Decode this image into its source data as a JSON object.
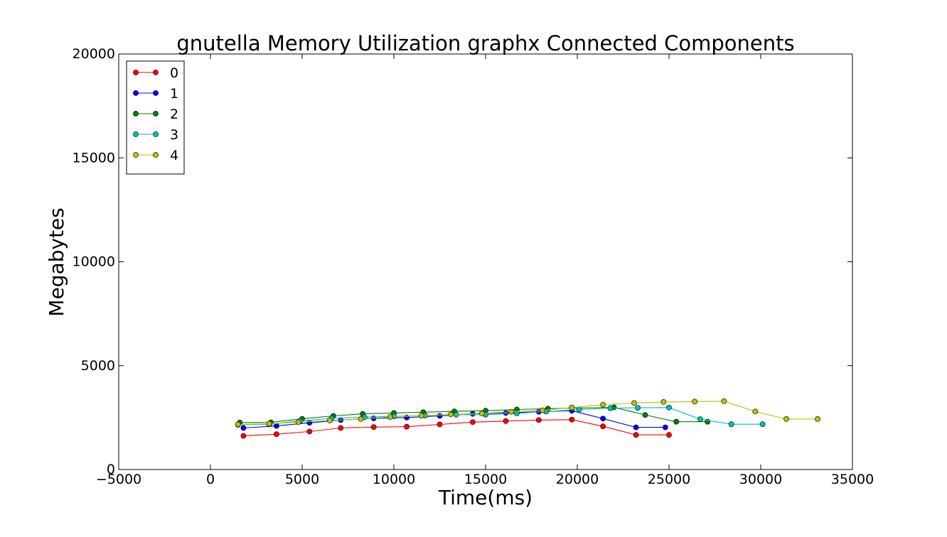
{
  "chart_data": {
    "type": "line",
    "title": "gnutella Memory Utilization graphx Connected Components",
    "xlabel": "Time(ms)",
    "ylabel": "Megabytes",
    "xlim": [
      -5000,
      35000
    ],
    "ylim": [
      0,
      20000
    ],
    "xticks": [
      "−5000",
      "0",
      "5000",
      "10000",
      "15000",
      "20000",
      "25000",
      "30000",
      "35000"
    ],
    "yticks": [
      "0",
      "5000",
      "10000",
      "15000",
      "20000"
    ],
    "legend_position": "top-left",
    "grid": false,
    "series": [
      {
        "name": "0",
        "color": "#ff0000",
        "x": [
          1800,
          3600,
          5400,
          7100,
          8900,
          10700,
          12500,
          14300,
          16100,
          17900,
          19700,
          21400,
          23200,
          25000
        ],
        "y": [
          1620,
          1700,
          1830,
          2000,
          2040,
          2060,
          2170,
          2280,
          2330,
          2380,
          2400,
          2080,
          1670,
          1670
        ]
      },
      {
        "name": "1",
        "color": "#0000ff",
        "x": [
          1800,
          3600,
          5400,
          7100,
          8900,
          10700,
          12500,
          14300,
          16100,
          17900,
          19700,
          21400,
          23200,
          24800
        ],
        "y": [
          2000,
          2100,
          2250,
          2380,
          2460,
          2500,
          2580,
          2680,
          2720,
          2780,
          2830,
          2450,
          2030,
          2030
        ]
      },
      {
        "name": "2",
        "color": "#008000",
        "x": [
          1600,
          3300,
          5000,
          6700,
          8300,
          10000,
          11600,
          13300,
          15000,
          16700,
          18400,
          22000,
          23700,
          25400,
          27100
        ],
        "y": [
          2260,
          2270,
          2440,
          2580,
          2680,
          2720,
          2760,
          2800,
          2830,
          2890,
          2930,
          2990,
          2630,
          2300,
          2300
        ]
      },
      {
        "name": "3",
        "color": "#00bfbf",
        "x": [
          1500,
          3200,
          4900,
          6600,
          8400,
          10000,
          11700,
          13400,
          15000,
          16700,
          18300,
          20100,
          21800,
          23300,
          25000,
          26700,
          28400,
          30100
        ],
        "y": [
          2150,
          2180,
          2340,
          2460,
          2520,
          2560,
          2600,
          2640,
          2640,
          2700,
          2790,
          2890,
          2950,
          2970,
          2980,
          2420,
          2180,
          2180
        ]
      },
      {
        "name": "4",
        "color": "#bfbf00",
        "x": [
          1500,
          3200,
          4800,
          6500,
          8200,
          9800,
          11500,
          13100,
          14800,
          16400,
          18100,
          19700,
          21400,
          23100,
          24700,
          26400,
          28000,
          29700,
          31400,
          33100
        ],
        "y": [
          2170,
          2200,
          2280,
          2360,
          2430,
          2530,
          2590,
          2650,
          2700,
          2780,
          2850,
          2980,
          3120,
          3200,
          3250,
          3270,
          3290,
          2790,
          2430,
          2430
        ]
      }
    ]
  }
}
